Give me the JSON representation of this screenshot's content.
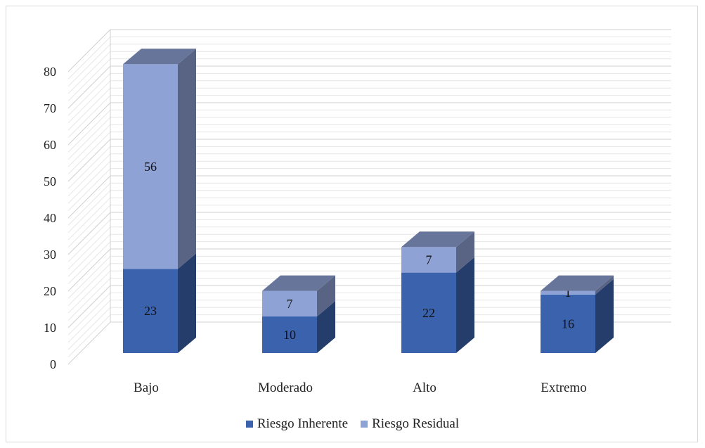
{
  "chart_data": {
    "type": "bar",
    "stacked": true,
    "three_d": true,
    "categories": [
      "Bajo",
      "Moderado",
      "Alto",
      "Extremo"
    ],
    "series": [
      {
        "name": "Riesgo Inherente",
        "values": [
          23,
          10,
          22,
          16
        ],
        "color": "#3a62ad"
      },
      {
        "name": "Riesgo Residual",
        "values": [
          56,
          7,
          7,
          1
        ],
        "color": "#8fa2d6"
      }
    ],
    "y_ticks": [
      "0",
      "10",
      "20",
      "30",
      "40",
      "50",
      "60",
      "70",
      "80"
    ],
    "ylim": [
      0,
      80
    ],
    "grid": true,
    "legend_position": "bottom"
  }
}
